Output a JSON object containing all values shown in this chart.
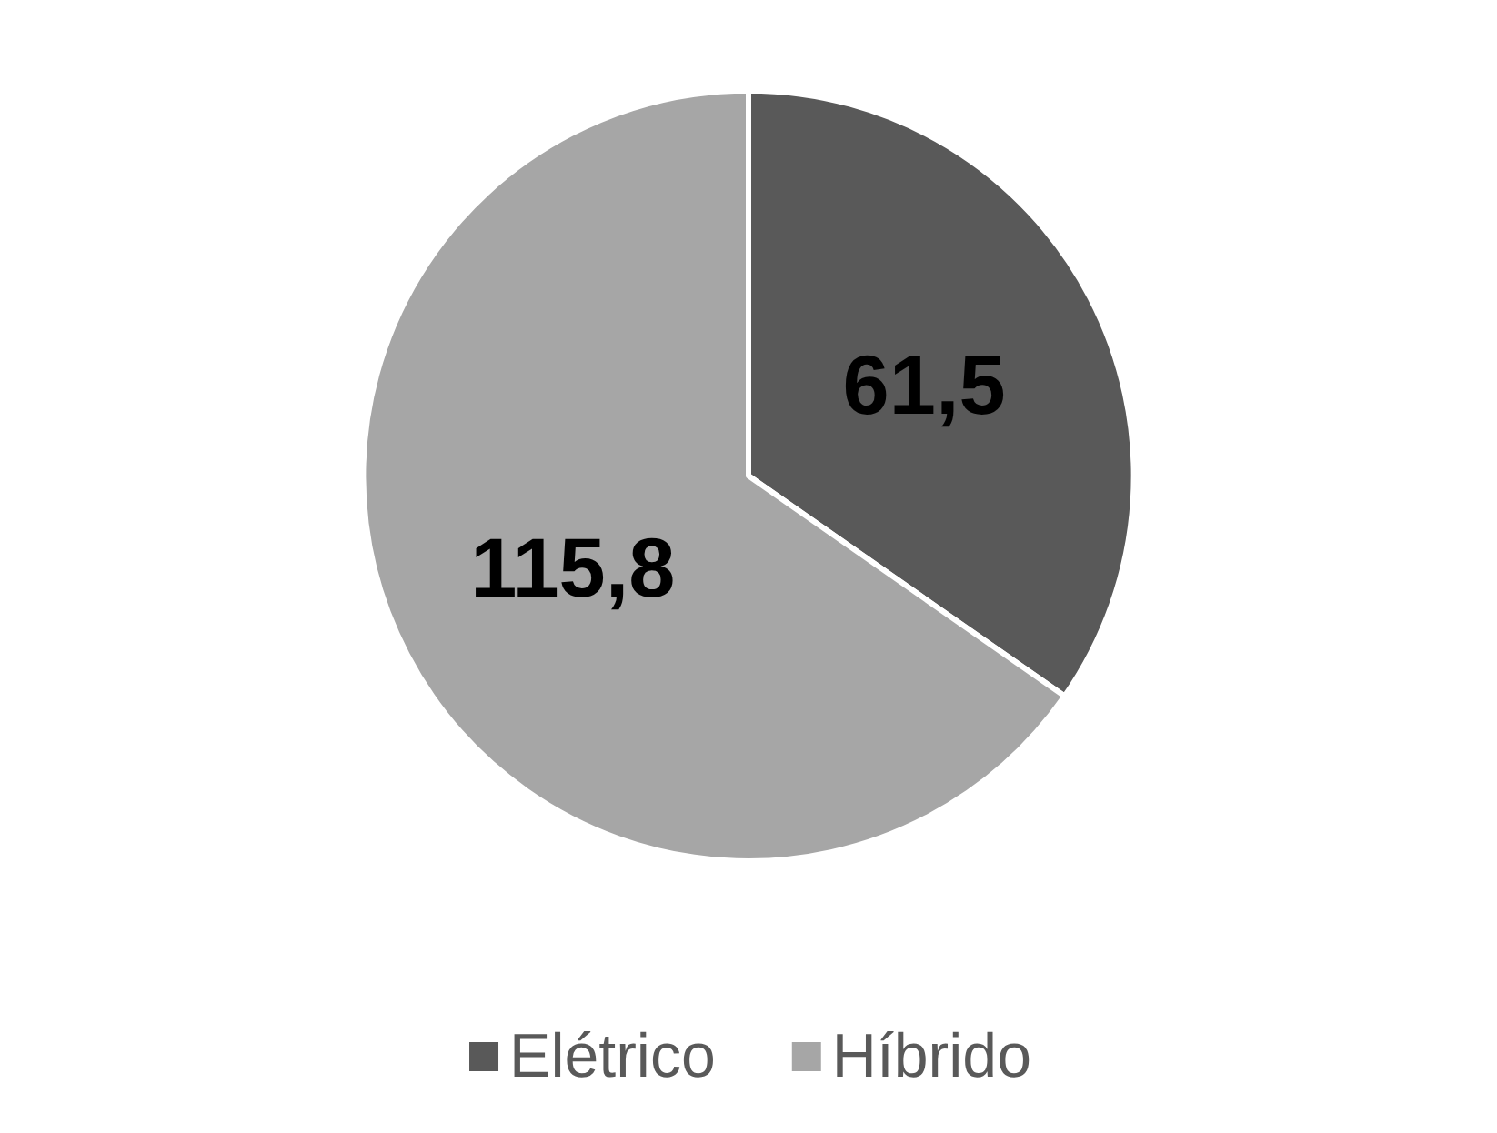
{
  "chart_data": {
    "type": "pie",
    "categories": [
      "Elétrico",
      "Híbrido"
    ],
    "values": [
      61.5,
      115.8
    ],
    "colors": [
      "#595959",
      "#a6a6a6"
    ],
    "value_labels": [
      "61,5",
      "115,8"
    ],
    "legend": "bottom"
  }
}
